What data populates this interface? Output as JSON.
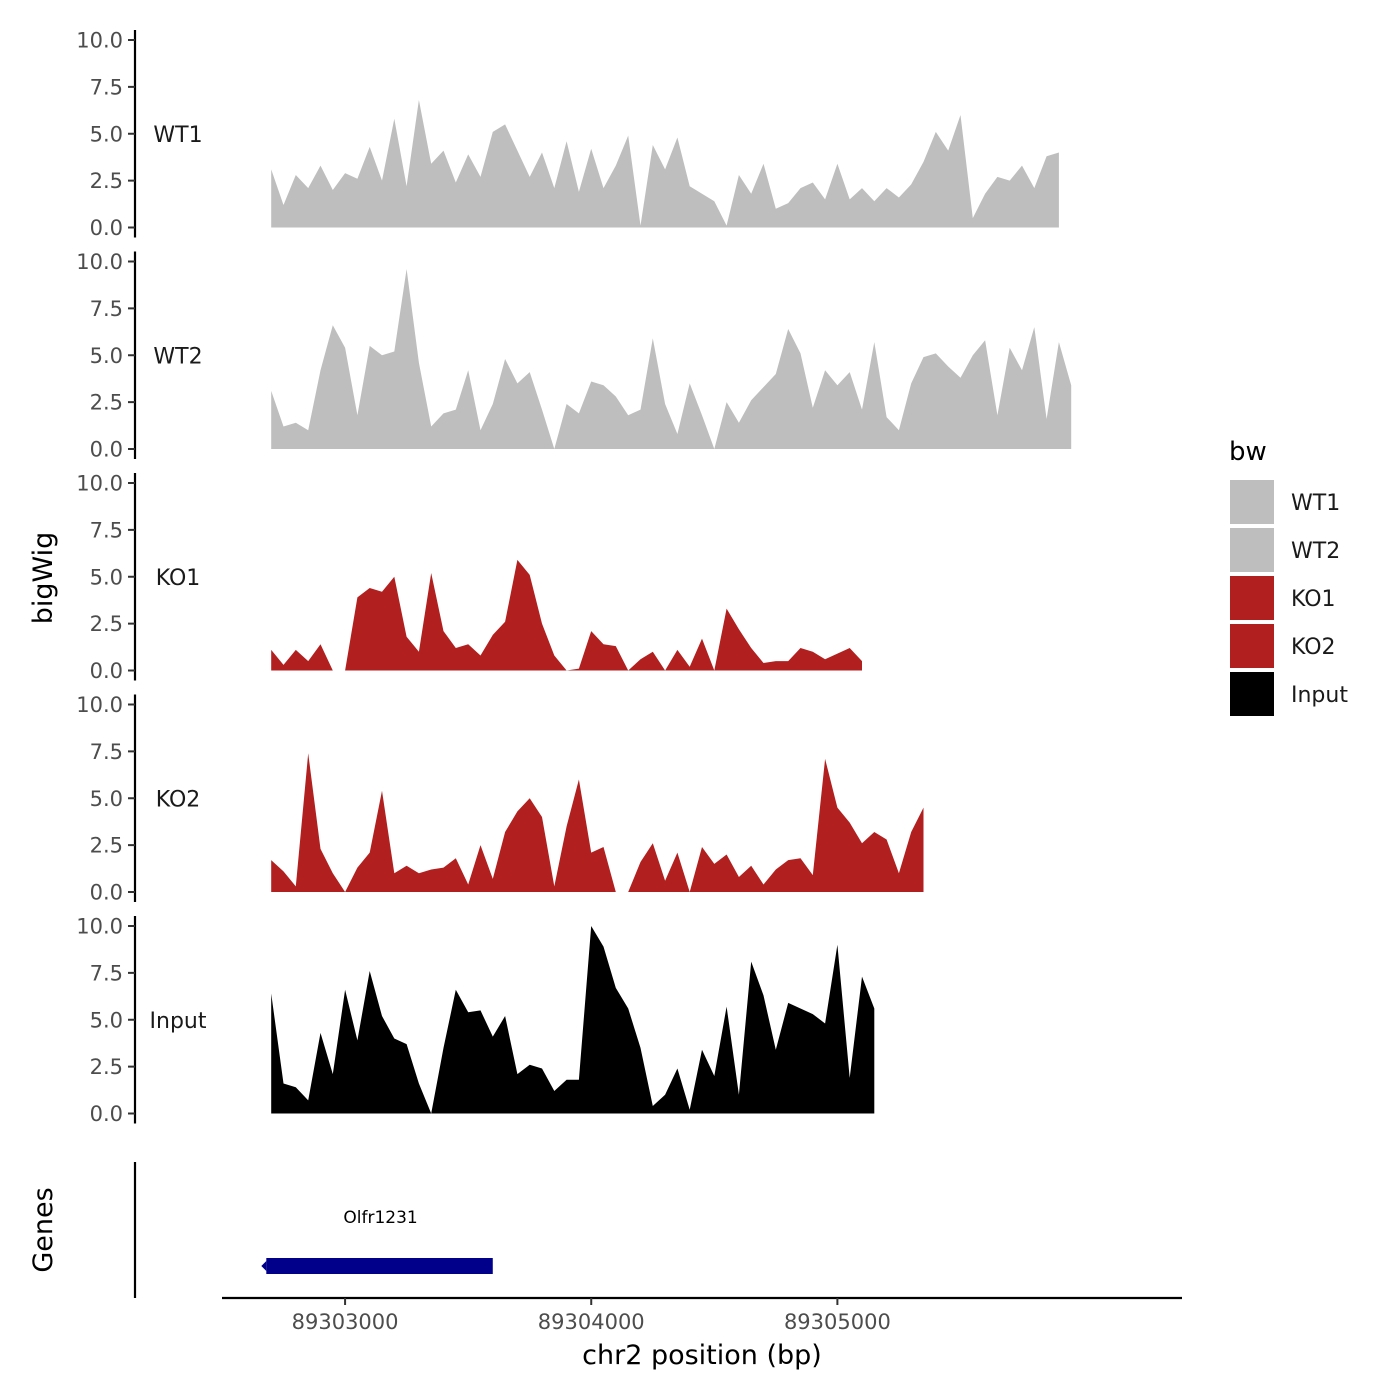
{
  "chart_data": {
    "type": "area",
    "title": "",
    "xlabel": "chr2 position (bp)",
    "ylabel": "bigWig",
    "genes_label": "Genes",
    "xlim": [
      89302500,
      89306400
    ],
    "x_start": 89302700,
    "x_step": 50,
    "x_ticks": [
      {
        "value": 89303000,
        "label": "89303000"
      },
      {
        "value": 89304000,
        "label": "89304000"
      },
      {
        "value": 89305000,
        "label": "89305000"
      }
    ],
    "ylim": [
      0,
      10
    ],
    "y_ticks": [
      {
        "value": 0,
        "label": "0.0"
      },
      {
        "value": 2.5,
        "label": "2.5"
      },
      {
        "value": 5,
        "label": "5.0"
      },
      {
        "value": 7.5,
        "label": "7.5"
      },
      {
        "value": 10,
        "label": "10.0"
      }
    ],
    "legend": {
      "title": "bw",
      "entries": [
        {
          "label": "WT1",
          "color": "#bebebe"
        },
        {
          "label": "WT2",
          "color": "#bebebe"
        },
        {
          "label": "KO1",
          "color": "#b21f1f"
        },
        {
          "label": "KO2",
          "color": "#b21f1f"
        },
        {
          "label": "Input",
          "color": "#000000"
        }
      ]
    },
    "series": [
      {
        "name": "WT1",
        "color": "#bebebe",
        "values": [
          3.1,
          1.2,
          2.8,
          2.1,
          3.3,
          2.0,
          2.9,
          2.6,
          4.3,
          2.5,
          5.8,
          2.2,
          6.8,
          3.4,
          4.1,
          2.4,
          3.9,
          2.7,
          5.1,
          5.5,
          4.1,
          2.7,
          4.0,
          2.1,
          4.6,
          1.9,
          4.2,
          2.1,
          3.3,
          4.9,
          0.1,
          4.4,
          3.1,
          4.8,
          2.2,
          1.8,
          1.4,
          0.1,
          2.8,
          1.8,
          3.4,
          1.0,
          1.3,
          2.1,
          2.4,
          1.5,
          3.4,
          1.5,
          2.1,
          1.4,
          2.1,
          1.6,
          2.3,
          3.5,
          5.1,
          4.1,
          6.0,
          0.5,
          1.8,
          2.7,
          2.5,
          3.3,
          2.1,
          3.8,
          4.0
        ]
      },
      {
        "name": "WT2",
        "color": "#bebebe",
        "values": [
          3.1,
          1.2,
          1.4,
          1.0,
          4.2,
          6.6,
          5.4,
          1.8,
          5.5,
          5.0,
          5.2,
          9.6,
          4.6,
          1.2,
          1.9,
          2.1,
          4.2,
          1.0,
          2.4,
          4.8,
          3.5,
          4.1,
          2.1,
          0.0,
          2.4,
          1.9,
          3.6,
          3.4,
          2.8,
          1.8,
          2.1,
          5.9,
          2.4,
          0.8,
          3.5,
          1.8,
          0.0,
          2.5,
          1.4,
          2.6,
          3.3,
          4.0,
          6.4,
          5.1,
          2.2,
          4.2,
          3.4,
          4.1,
          2.1,
          5.7,
          1.7,
          1.0,
          3.5,
          4.9,
          5.1,
          4.4,
          3.8,
          5.0,
          5.8,
          1.8,
          5.4,
          4.2,
          6.5,
          1.6,
          5.7,
          3.4
        ]
      },
      {
        "name": "KO1",
        "color": "#b21f1f",
        "values": [
          1.1,
          0.3,
          1.1,
          0.5,
          1.4,
          0.0,
          0.0,
          3.9,
          4.4,
          4.2,
          5.0,
          1.8,
          1.0,
          5.2,
          2.1,
          1.2,
          1.4,
          0.8,
          1.9,
          2.6,
          5.9,
          5.1,
          2.5,
          0.8,
          0.0,
          0.1,
          2.1,
          1.4,
          1.3,
          0.0,
          0.6,
          1.0,
          0.0,
          1.1,
          0.2,
          1.7,
          0.0,
          3.3,
          2.2,
          1.2,
          0.4,
          0.5,
          0.5,
          1.2,
          1.0,
          0.6,
          0.9,
          1.2,
          0.5
        ]
      },
      {
        "name": "KO2",
        "color": "#b21f1f",
        "values": [
          1.7,
          1.1,
          0.3,
          7.4,
          2.3,
          1.0,
          0.0,
          1.3,
          2.1,
          5.4,
          1.0,
          1.4,
          1.0,
          1.2,
          1.3,
          1.8,
          0.4,
          2.5,
          0.7,
          3.2,
          4.3,
          5.0,
          4.0,
          0.3,
          3.5,
          6.0,
          2.1,
          2.4,
          0.0,
          0.0,
          1.6,
          2.6,
          0.6,
          2.1,
          0.0,
          2.4,
          1.5,
          2.0,
          0.8,
          1.4,
          0.4,
          1.2,
          1.7,
          1.8,
          0.9,
          7.1,
          4.5,
          3.7,
          2.6,
          3.2,
          2.8,
          1.0,
          3.2,
          4.5
        ]
      },
      {
        "name": "Input",
        "color": "#000000",
        "values": [
          6.4,
          1.6,
          1.4,
          0.7,
          4.3,
          2.1,
          6.6,
          3.9,
          7.6,
          5.2,
          4.0,
          3.7,
          1.6,
          0.0,
          3.5,
          6.6,
          5.4,
          5.5,
          4.1,
          5.2,
          2.1,
          2.6,
          2.4,
          1.2,
          1.8,
          1.8,
          10.0,
          8.9,
          6.7,
          5.6,
          3.5,
          0.4,
          1.0,
          2.4,
          0.2,
          3.4,
          2.0,
          5.7,
          1.0,
          8.1,
          6.3,
          3.4,
          5.9,
          5.6,
          5.3,
          4.8,
          9.0,
          1.9,
          7.3,
          5.6
        ]
      }
    ],
    "genes": [
      {
        "name": "Olfr1231",
        "start": 89302680,
        "end": 89303600,
        "strand": "-",
        "color": "#00008b"
      }
    ]
  }
}
